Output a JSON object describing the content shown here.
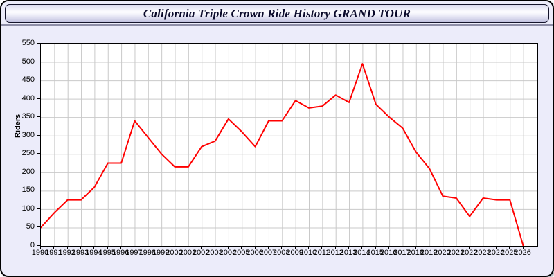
{
  "title": "California Triple Crown Ride History GRAND TOUR",
  "colors": {
    "page_background": "#ececfa",
    "plot_background": "#ffffff",
    "grid": "#c9c9c9",
    "frame": "#000000",
    "series": "#ff0000",
    "text": "#000000"
  },
  "chart_data": {
    "type": "line",
    "title": "California Triple Crown Ride History GRAND TOUR",
    "xlabel": "",
    "ylabel": "Riders",
    "ylim": [
      0,
      550
    ],
    "ytick_step": 50,
    "grid": true,
    "legend_position": "none",
    "x": [
      1990,
      1991,
      1992,
      1993,
      1994,
      1995,
      1996,
      1997,
      1998,
      1999,
      2000,
      2001,
      2002,
      2003,
      2004,
      2005,
      2006,
      2007,
      2008,
      2009,
      2010,
      2011,
      2012,
      2013,
      2014,
      2015,
      2016,
      2017,
      2018,
      2019,
      2020,
      2021,
      2022,
      2023,
      2024,
      2025,
      2026
    ],
    "series": [
      {
        "name": "Riders",
        "color": "#ff0000",
        "values": [
          50,
          90,
          125,
          125,
          160,
          225,
          225,
          340,
          295,
          250,
          215,
          215,
          270,
          285,
          345,
          310,
          270,
          340,
          340,
          395,
          375,
          380,
          410,
          390,
          495,
          385,
          350,
          320,
          255,
          210,
          135,
          130,
          80,
          130,
          125,
          125,
          0
        ]
      }
    ]
  }
}
